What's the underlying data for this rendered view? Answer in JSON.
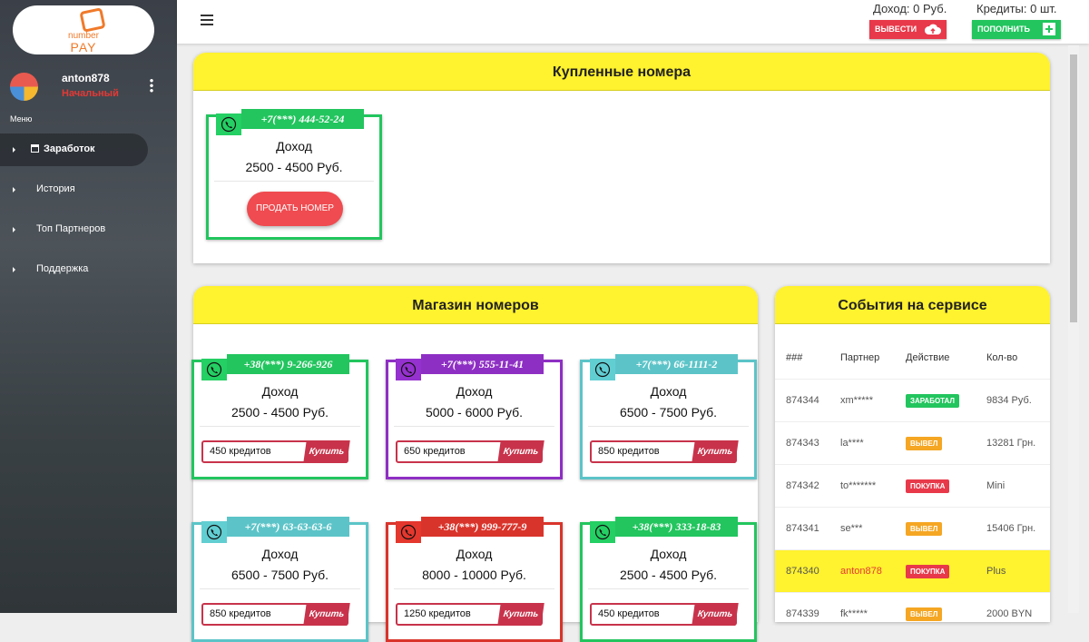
{
  "logo": {
    "line1": "number",
    "line2": "PAY"
  },
  "user": {
    "name": "anton878",
    "status": "Начальный"
  },
  "menu": {
    "label": "Меню",
    "items": [
      "Заработок",
      "История",
      "Топ Партнеров",
      "Поддержка"
    ]
  },
  "header": {
    "income": "Доход: 0 Руб.",
    "credits": "Кредиты: 0 шт.",
    "withdraw": "ВЫВЕСТИ",
    "topup": "ПОПОЛНИТЬ"
  },
  "purchased": {
    "title": "Купленные номера",
    "cards": [
      {
        "phone": "+7(***) 444-52-24",
        "label": "Доход",
        "range": "2500 - 4500 Руб.",
        "button": "ПРОДАТЬ НОМЕР",
        "color": "#22c55e"
      }
    ]
  },
  "shop": {
    "title": "Магазин номеров",
    "cards": [
      {
        "phone": "+38(***) 9-266-926",
        "label": "Доход",
        "range": "2500 - 4500 Руб.",
        "price": "450 кредитов",
        "button": "Купить",
        "color": "#22c55e"
      },
      {
        "phone": "+7(***) 555-11-41",
        "label": "Доход",
        "range": "5000 - 6000 Руб.",
        "price": "650 кредитов",
        "button": "Купить",
        "color": "#8e2fc4"
      },
      {
        "phone": "+7(***) 66-1111-2",
        "label": "Доход",
        "range": "6500 - 7500 Руб.",
        "price": "850 кредитов",
        "button": "Купить",
        "color": "#5cc4c8"
      },
      {
        "phone": "+7(***) 63-63-63-6",
        "label": "Доход",
        "range": "6500 - 7500 Руб.",
        "price": "850 кредитов",
        "button": "Купить",
        "color": "#5cc4c8"
      },
      {
        "phone": "+38(***) 999-777-9",
        "label": "Доход",
        "range": "8000 - 10000 Руб.",
        "price": "1250 кредитов",
        "button": "Купить",
        "color": "#d9342b"
      },
      {
        "phone": "+38(***) 333-18-83",
        "label": "Доход",
        "range": "2500 - 4500 Руб.",
        "price": "450 кредитов",
        "button": "Купить",
        "color": "#22c55e"
      }
    ]
  },
  "events": {
    "title": "События на сервисе",
    "columns": [
      "###",
      "Партнер",
      "Действие",
      "Кол-во"
    ],
    "rows": [
      {
        "id": "874344",
        "partner": "xm*****",
        "action": "ЗАРАБОТАЛ",
        "amount": "9834 Руб.",
        "badge": "#22c55e"
      },
      {
        "id": "874343",
        "partner": "la****",
        "action": "ВЫВЕЛ",
        "amount": "13281 Грн.",
        "badge": "#f5a623"
      },
      {
        "id": "874342",
        "partner": "to*******",
        "action": "ПОКУПКА",
        "amount": "Mini",
        "badge": "#e8394a"
      },
      {
        "id": "874341",
        "partner": "se***",
        "action": "ВЫВЕЛ",
        "amount": "15406 Грн.",
        "badge": "#f5a623"
      },
      {
        "id": "874340",
        "partner": "anton878",
        "action": "ПОКУПКА",
        "amount": "Plus",
        "badge": "#e8394a",
        "highlight": true
      },
      {
        "id": "874339",
        "partner": "fk*****",
        "action": "ВЫВЕЛ",
        "amount": "2000 BYN",
        "badge": "#f5a623"
      }
    ]
  }
}
